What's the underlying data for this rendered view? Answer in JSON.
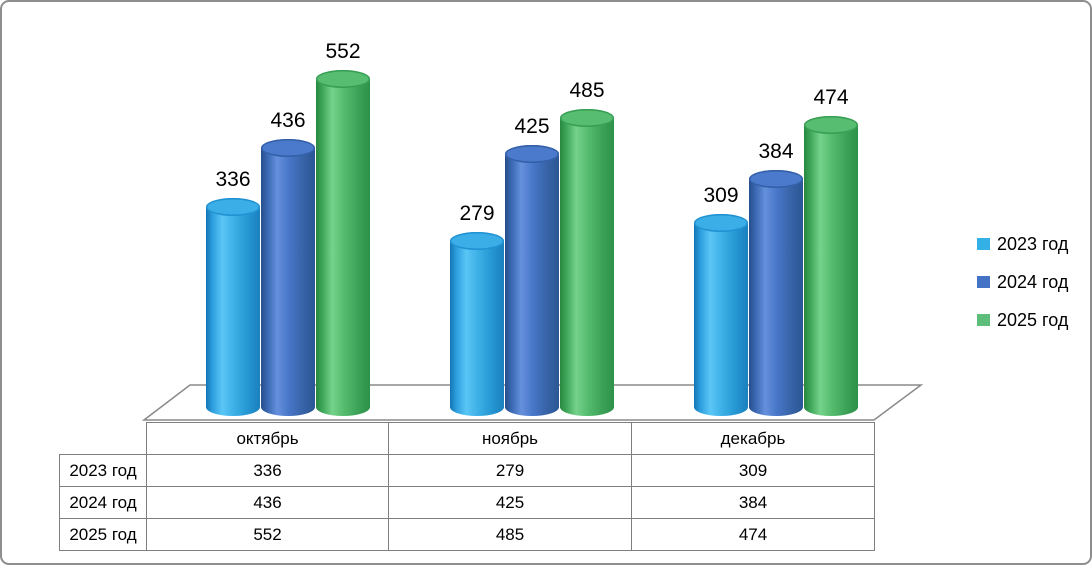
{
  "chart_data": {
    "type": "bar",
    "subtype": "3d-cylinder",
    "categories": [
      "октябрь",
      "ноябрь",
      "декабрь"
    ],
    "series": [
      {
        "name": "2023 год",
        "values": [
          336,
          279,
          309
        ],
        "color": "#2FA3E0"
      },
      {
        "name": "2024 год",
        "values": [
          436,
          425,
          384
        ],
        "color": "#4472C4"
      },
      {
        "name": "2025 год",
        "values": [
          552,
          485,
          474
        ],
        "color": "#4CB85F"
      }
    ],
    "title": "",
    "xlabel": "",
    "ylabel": "",
    "value_labels_shown": true,
    "data_table_shown": true,
    "legend_position": "right",
    "grid": false
  },
  "legend": {
    "items": [
      {
        "label": "2023 год",
        "color": "#33B1E6"
      },
      {
        "label": "2024 год",
        "color": "#4472C4"
      },
      {
        "label": "2025 год",
        "color": "#5CBE7A"
      }
    ]
  },
  "colors": {
    "frame_border": "#8E8E8E",
    "table_border": "#7F7F7F",
    "floor_stroke": "#8A8A8A",
    "label_text": "#000000",
    "background": "#FFFFFF"
  }
}
